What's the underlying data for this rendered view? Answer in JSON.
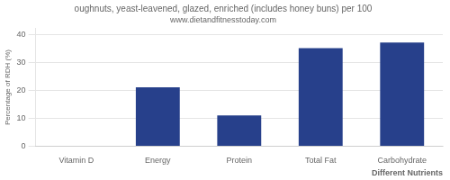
{
  "chart_data": {
    "type": "bar",
    "title": "oughnuts, yeast-leavened, glazed, enriched (includes honey buns) per 100",
    "subtitle": "www.dietandfitnesstoday.com",
    "categories": [
      "Vitamin D",
      "Energy",
      "Protein",
      "Total Fat",
      "Carbohydrate"
    ],
    "values": [
      0,
      21,
      11,
      35,
      37
    ],
    "color": "#27408B",
    "xlabel": "Different Nutrients",
    "ylabel": "Percentage of RDH (%)",
    "ylim": [
      0,
      42
    ],
    "yticks": [
      0,
      10,
      20,
      30,
      40
    ],
    "grid": true
  }
}
